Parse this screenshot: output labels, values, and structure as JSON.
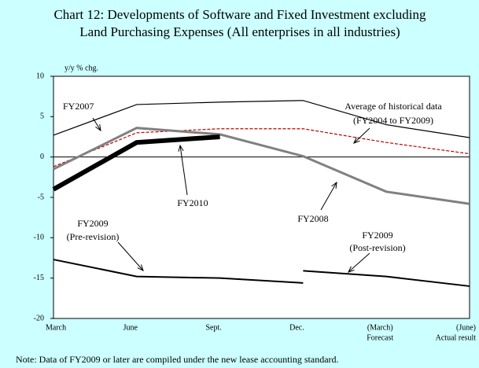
{
  "chart_data": {
    "type": "line",
    "title": [
      "Chart 12: Developments of Software and Fixed Investment excluding",
      "Land Purchasing Expenses (All enterprises in all industries)"
    ],
    "y_label": "y/y % chg.",
    "categories": [
      "March",
      "June",
      "Sept.",
      "Dec.",
      "(March)",
      "(June)"
    ],
    "category_sub": [
      null,
      null,
      null,
      null,
      "Forecast",
      "Actual result"
    ],
    "ylim": [
      -20,
      10
    ],
    "yticks": [
      -20,
      -15,
      -10,
      -5,
      0,
      5,
      10
    ],
    "series": [
      {
        "name": "FY2007",
        "color": "#000000",
        "width": 1.2,
        "values": [
          2.7,
          6.5,
          6.8,
          7.0,
          4.0,
          2.4
        ]
      },
      {
        "name": "Average of historical data",
        "label_sub": "(FY2004 to FY2009)",
        "color": "#c00000",
        "width": 1.2,
        "dashed": true,
        "values": [
          -1.2,
          3.0,
          3.5,
          3.5,
          1.8,
          0.4
        ]
      },
      {
        "name": "FY2008",
        "color": "#808080",
        "width": 3,
        "values": [
          -1.5,
          3.6,
          2.8,
          0.1,
          -4.3,
          -5.8
        ]
      },
      {
        "name": "FY2010",
        "color": "#000000",
        "width": 6,
        "values": [
          -4.0,
          1.8,
          2.5,
          null,
          null,
          null
        ]
      },
      {
        "name": "FY2009",
        "label_sub": "(Pre-revision)",
        "color": "#000000",
        "width": 2,
        "values": [
          -12.7,
          -14.8,
          -15.0,
          -15.6,
          null,
          null
        ]
      },
      {
        "name": "FY2009",
        "label_sub": "(Post-revision)",
        "color": "#000000",
        "width": 2,
        "values": [
          null,
          null,
          null,
          -14.1,
          -14.8,
          -16.0
        ]
      }
    ],
    "note": "Note: Data of FY2009 or later are compiled under the new lease accounting standard."
  }
}
